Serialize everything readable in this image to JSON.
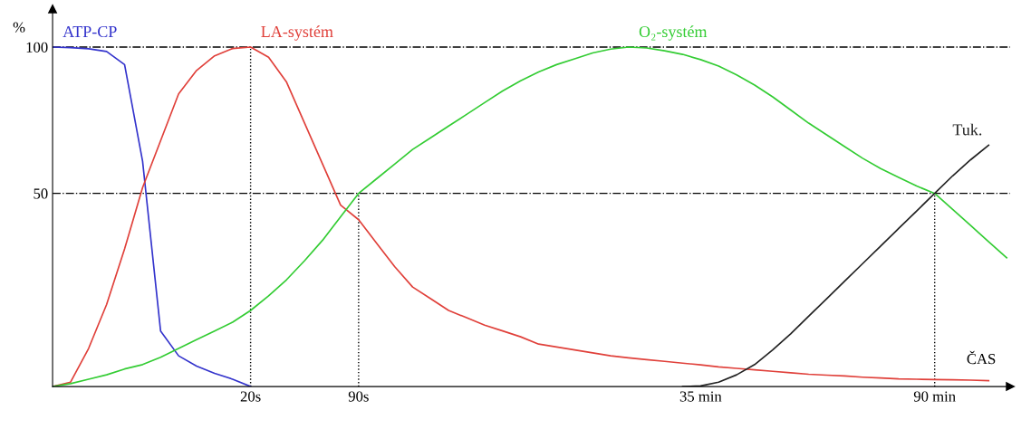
{
  "chart_data": {
    "type": "line",
    "ylabel": "%",
    "xlabel": "ČAS",
    "ylim": [
      -16,
      113
    ],
    "categories": [
      null,
      null,
      null,
      null,
      null,
      null,
      null,
      null,
      null,
      null,
      null,
      "20s",
      null,
      null,
      null,
      null,
      null,
      "90s",
      null,
      null,
      null,
      null,
      null,
      null,
      null,
      null,
      null,
      null,
      null,
      null,
      null,
      null,
      null,
      null,
      null,
      null,
      "35 min",
      null,
      null,
      null,
      null,
      null,
      null,
      null,
      null,
      null,
      null,
      null,
      null,
      "90 min",
      null,
      null,
      null,
      null
    ],
    "yticks": [
      50,
      100
    ],
    "grid": false,
    "legend": false,
    "marker": "none",
    "ref_lines": [
      {
        "axis": "y",
        "value": 100,
        "color": "#000000",
        "line_style": "dashdot"
      },
      {
        "axis": "y",
        "value": 50,
        "color": "#000000",
        "line_style": "dashdot"
      },
      {
        "axis": "x",
        "value": "20s",
        "color": "#000000",
        "line_style": "dotted"
      },
      {
        "axis": "x",
        "value": "90s",
        "color": "#000000",
        "line_style": "dotted"
      },
      {
        "axis": "x",
        "value": "90 min",
        "color": "#000000",
        "line_style": "dotted"
      }
    ],
    "series": [
      {
        "name": "ATP-CP",
        "color": "#3333cc",
        "values": [
          100,
          99.8,
          99.4,
          98.5,
          94,
          61,
          3,
          -5.5,
          -9,
          -11.5,
          -13.5,
          -16,
          null,
          null,
          null,
          null,
          null,
          null,
          null,
          null,
          null,
          null,
          null,
          null,
          null,
          null,
          null,
          null,
          null,
          null,
          null,
          null,
          null,
          null,
          null,
          null,
          null,
          null,
          null,
          null,
          null,
          null,
          null,
          null,
          null,
          null,
          null,
          null,
          null,
          null,
          null,
          null,
          null,
          null
        ]
      },
      {
        "name": "LA-systém",
        "color": "#e0403a",
        "values": [
          -16,
          -14.5,
          -3,
          12,
          31,
          52,
          68,
          84,
          92,
          97,
          99.5,
          100,
          96.5,
          88,
          74,
          60,
          46,
          41,
          33,
          25,
          18,
          14,
          10,
          7.5,
          5,
          3,
          1,
          -1.5,
          -2.5,
          -3.5,
          -4.5,
          -5.5,
          -6.2,
          -6.8,
          -7.4,
          -8,
          -8.6,
          -9.3,
          -9.8,
          -10.3,
          -10.8,
          -11.3,
          -11.8,
          -12.1,
          -12.4,
          -12.8,
          -13.1,
          -13.4,
          -13.5,
          -13.6,
          -13.7,
          -13.8,
          -14,
          null
        ]
      },
      {
        "name": "O₂-systém",
        "color": "#33cc33",
        "values": [
          -16,
          -15,
          -13.5,
          -12,
          -10,
          -8.5,
          -6,
          -3,
          0,
          3,
          6,
          10,
          15,
          20.5,
          27,
          34,
          42,
          50,
          55,
          60,
          65,
          69,
          73,
          77,
          81,
          85,
          88.5,
          91.5,
          94,
          96,
          98,
          99.3,
          100,
          99.7,
          98.7,
          97.5,
          95.7,
          93.5,
          90.5,
          87,
          83,
          78.5,
          74,
          70,
          66,
          62,
          58.5,
          55.5,
          52.5,
          50,
          44.5,
          39,
          33.5,
          28
        ]
      },
      {
        "name": "Tuk.",
        "color": "#222222",
        "values": [
          null,
          null,
          null,
          null,
          null,
          null,
          null,
          null,
          null,
          null,
          null,
          null,
          null,
          null,
          null,
          null,
          null,
          null,
          null,
          null,
          null,
          null,
          null,
          null,
          null,
          null,
          null,
          null,
          null,
          null,
          null,
          null,
          null,
          null,
          null,
          -16,
          -15.8,
          -14.5,
          -12,
          -8.5,
          -3.5,
          2,
          8,
          14,
          20,
          26,
          32,
          38,
          44,
          50,
          56,
          61.5,
          66.5,
          null
        ]
      }
    ]
  }
}
